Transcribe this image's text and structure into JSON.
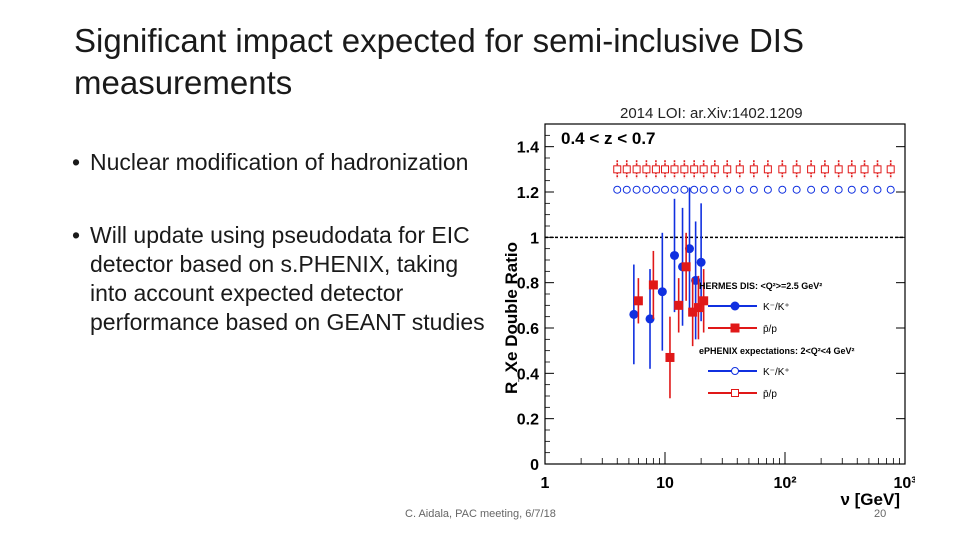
{
  "slide": {
    "title": "Significant impact expected for semi-inclusive DIS measurements",
    "reference": "2014 LOI: ar.Xiv:1402.1209",
    "bullets": [
      "Nuclear modification of hadronization",
      "Will update using pseudodata for EIC detector based on s.PHENIX, taking into account expected detector performance based on GEANT studies"
    ],
    "footer": "C. Aidala, PAC meeting, 6/7/18",
    "page_number": "20"
  },
  "chart_data": {
    "type": "scatter",
    "title": "0.4 < z < 0.7",
    "ylabel": "R_Xe Double Ratio",
    "xlabel": "ν [GeV]",
    "xscale": "log",
    "xlim": [
      1,
      1000
    ],
    "ylim": [
      0,
      1.5
    ],
    "yticks": [
      0,
      0.2,
      0.4,
      0.6,
      0.8,
      1,
      1.2,
      1.4
    ],
    "xticks": [
      "1",
      "10",
      "10²",
      "10³"
    ],
    "reference_line": 1,
    "legend": {
      "header1": "HERMES DIS: <Q²>=2.5 GeV²",
      "header2": "ePHENIX expectations: 2<Q²<4 GeV²",
      "entries": [
        "K⁻/K⁺",
        "p̄/p",
        "K⁻/K⁺",
        "p̄/p"
      ]
    },
    "colors": {
      "kaon": "#1030e0",
      "proton": "#e01818"
    },
    "series": [
      {
        "name": "HERMES K⁻/K⁺",
        "marker": "filled-circle",
        "color": "#1030e0",
        "x": [
          5.5,
          7.5,
          9.5,
          12,
          14,
          16,
          18,
          20
        ],
        "y": [
          0.66,
          0.64,
          0.76,
          0.92,
          0.87,
          0.95,
          0.81,
          0.89
        ],
        "err": [
          0.22,
          0.22,
          0.26,
          0.25,
          0.26,
          0.27,
          0.26,
          0.26
        ]
      },
      {
        "name": "HERMES p̄/p",
        "marker": "filled-square",
        "color": "#e01818",
        "x": [
          6,
          8,
          11,
          13,
          15,
          17,
          19,
          21
        ],
        "y": [
          0.72,
          0.79,
          0.47,
          0.7,
          0.87,
          0.67,
          0.69,
          0.72
        ],
        "err": [
          0.1,
          0.15,
          0.18,
          0.12,
          0.15,
          0.15,
          0.14,
          0.14
        ]
      },
      {
        "name": "ePHENIX p̄/p",
        "marker": "open-square",
        "color": "#e01818",
        "x": [
          4,
          4.8,
          5.8,
          7,
          8.4,
          10,
          12,
          14.5,
          17.5,
          21,
          26,
          33,
          42,
          55,
          72,
          95,
          125,
          165,
          215,
          280,
          360,
          460,
          590,
          760
        ],
        "y": [
          1.3,
          1.3,
          1.3,
          1.3,
          1.3,
          1.3,
          1.3,
          1.3,
          1.3,
          1.3,
          1.3,
          1.3,
          1.3,
          1.3,
          1.3,
          1.3,
          1.3,
          1.3,
          1.3,
          1.3,
          1.3,
          1.3,
          1.3,
          1.3
        ],
        "err": [
          0.04,
          0.04,
          0.04,
          0.04,
          0.04,
          0.04,
          0.04,
          0.04,
          0.04,
          0.04,
          0.04,
          0.04,
          0.04,
          0.04,
          0.04,
          0.04,
          0.04,
          0.04,
          0.04,
          0.04,
          0.04,
          0.04,
          0.04,
          0.04
        ]
      },
      {
        "name": "ePHENIX K⁻/K⁺",
        "marker": "open-circle",
        "color": "#1030e0",
        "x": [
          4,
          4.8,
          5.8,
          7,
          8.4,
          10,
          12,
          14.5,
          17.5,
          21,
          26,
          33,
          42,
          55,
          72,
          95,
          125,
          165,
          215,
          280,
          360,
          460,
          590,
          760
        ],
        "y": [
          1.21,
          1.21,
          1.21,
          1.21,
          1.21,
          1.21,
          1.21,
          1.21,
          1.21,
          1.21,
          1.21,
          1.21,
          1.21,
          1.21,
          1.21,
          1.21,
          1.21,
          1.21,
          1.21,
          1.21,
          1.21,
          1.21,
          1.21,
          1.21
        ],
        "err": [
          0.015,
          0.015,
          0.015,
          0.015,
          0.015,
          0.015,
          0.015,
          0.015,
          0.015,
          0.015,
          0.015,
          0.015,
          0.015,
          0.015,
          0.015,
          0.015,
          0.015,
          0.015,
          0.015,
          0.015,
          0.015,
          0.015,
          0.015,
          0.015
        ]
      }
    ]
  }
}
